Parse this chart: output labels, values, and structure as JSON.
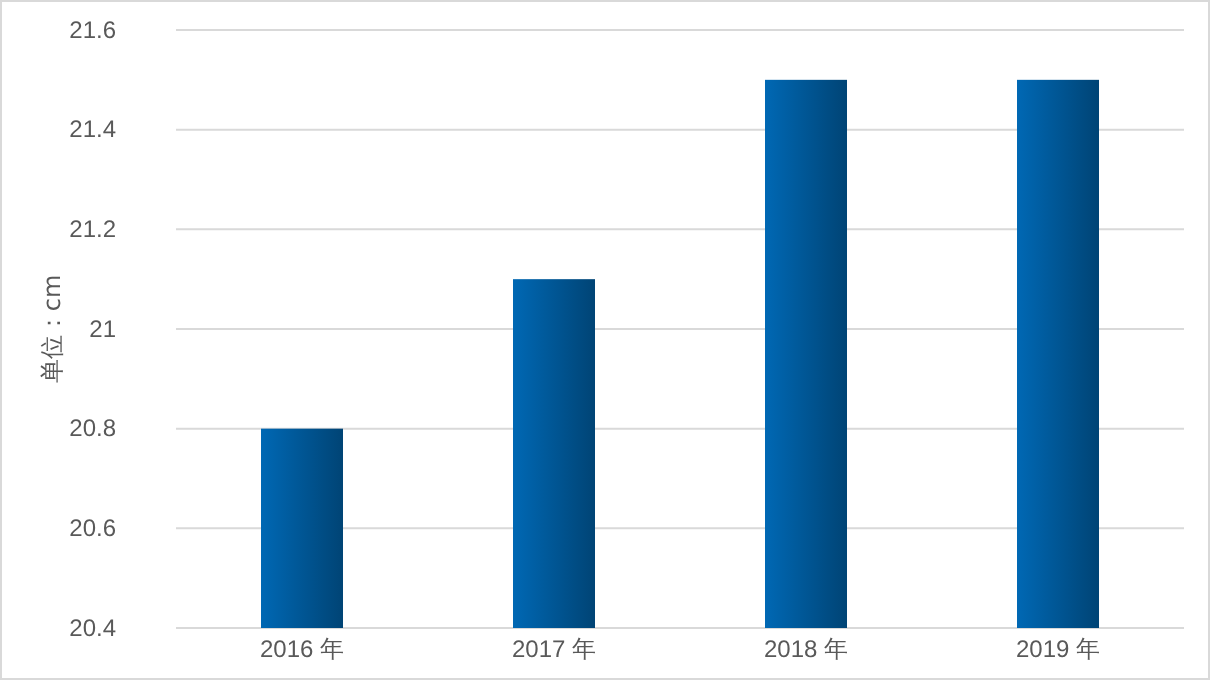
{
  "chart_data": {
    "type": "bar",
    "ylabel": "单位：cm",
    "categories": [
      "2016 年",
      "2017 年",
      "2018 年",
      "2019 年"
    ],
    "series": [
      {
        "color": "#0068b4",
        "values": [
          20.8,
          21.1,
          21.5,
          21.5
        ]
      }
    ],
    "ylim": [
      20.4,
      21.6
    ],
    "yticks": [
      20.4,
      20.6,
      20.8,
      21,
      21.2,
      21.4,
      21.6
    ],
    "grid": "y"
  }
}
